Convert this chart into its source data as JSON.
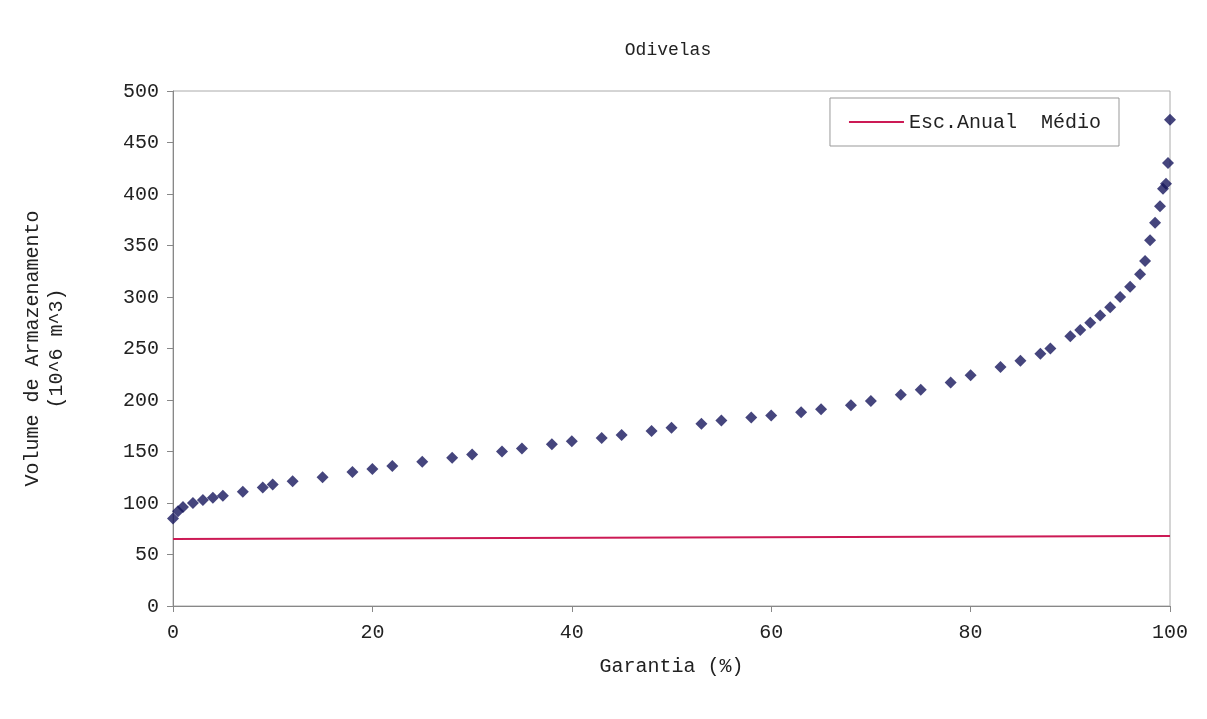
{
  "chart_data": {
    "type": "scatter",
    "title": "Odivelas",
    "xlabel": "Garantia (%)",
    "ylabel": "Volume de Armazenamento\n(10^6 m^3)",
    "xlim": [
      0,
      100
    ],
    "xticks": [
      0,
      20,
      40,
      60,
      80,
      100
    ],
    "ylim": [
      0,
      500
    ],
    "yticks": [
      0,
      50,
      100,
      150,
      200,
      250,
      300,
      350,
      400,
      450,
      500
    ],
    "grid": false,
    "legend": "top right",
    "marker": "diamond",
    "series": [
      {
        "color": "#16165c",
        "x": [
          0,
          0.5,
          1,
          2,
          3,
          4,
          5,
          7,
          9,
          10,
          12,
          15,
          18,
          20,
          22,
          25,
          28,
          30,
          33,
          35,
          38,
          40,
          43,
          45,
          48,
          50,
          53,
          55,
          58,
          60,
          63,
          65,
          68,
          70,
          73,
          75,
          78,
          80,
          83,
          85,
          87,
          88,
          90,
          91,
          92,
          93,
          94,
          95,
          96,
          97,
          97.5,
          98,
          98.5,
          99,
          99.3,
          99.6,
          99.8,
          100
        ],
        "values": [
          85,
          92,
          96,
          100,
          103,
          105,
          107,
          111,
          115,
          118,
          121,
          125,
          130,
          133,
          136,
          140,
          144,
          147,
          150,
          153,
          157,
          160,
          163,
          166,
          170,
          173,
          177,
          180,
          183,
          185,
          188,
          191,
          195,
          199,
          205,
          210,
          217,
          224,
          232,
          238,
          245,
          250,
          262,
          268,
          275,
          282,
          290,
          300,
          310,
          322,
          335,
          355,
          372,
          388,
          405,
          410,
          430,
          472
        ]
      },
      {
        "type": "line",
        "name": "Esc.Anual  Médio",
        "color": "#cc1a55",
        "marker": "none",
        "line_style": "solid",
        "x": [
          0,
          100
        ],
        "values": [
          65,
          68
        ]
      }
    ]
  }
}
